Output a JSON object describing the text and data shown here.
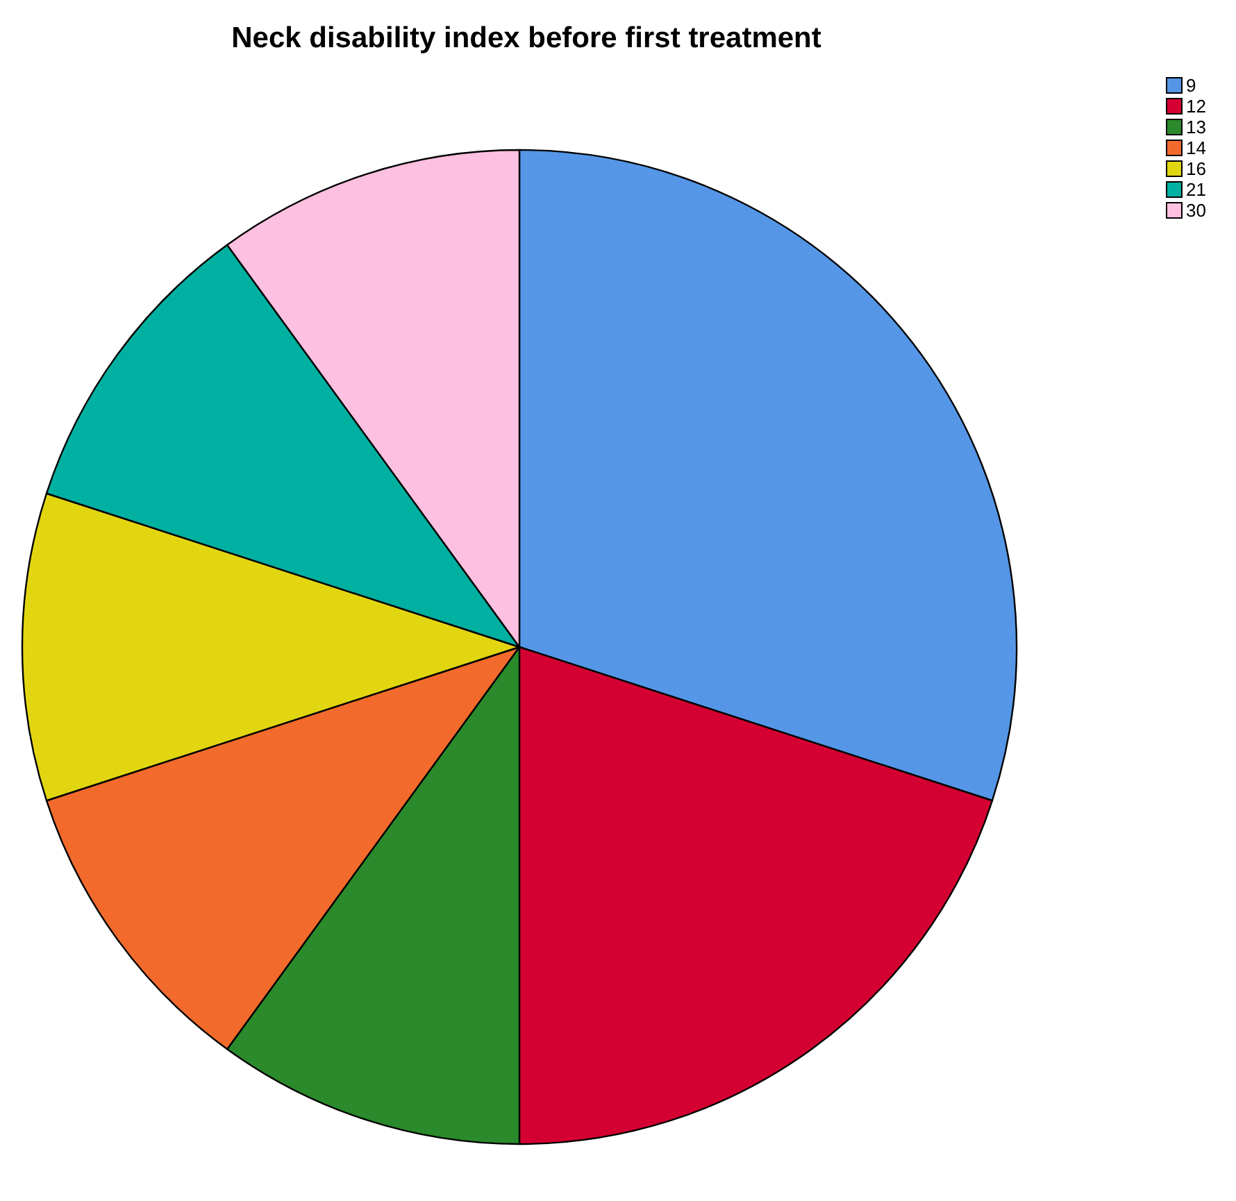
{
  "chart_data": {
    "type": "pie",
    "title": "Neck disability index before first treatment",
    "categories": [
      "9",
      "12",
      "13",
      "14",
      "16",
      "21",
      "30"
    ],
    "values": [
      30,
      20,
      10,
      10,
      10,
      10,
      10
    ],
    "colors": [
      "#5596e6",
      "#d50032",
      "#2b8a2b",
      "#f26a2c",
      "#e2d611",
      "#00b0a0",
      "#fdc0e0"
    ],
    "legend": "top right"
  }
}
